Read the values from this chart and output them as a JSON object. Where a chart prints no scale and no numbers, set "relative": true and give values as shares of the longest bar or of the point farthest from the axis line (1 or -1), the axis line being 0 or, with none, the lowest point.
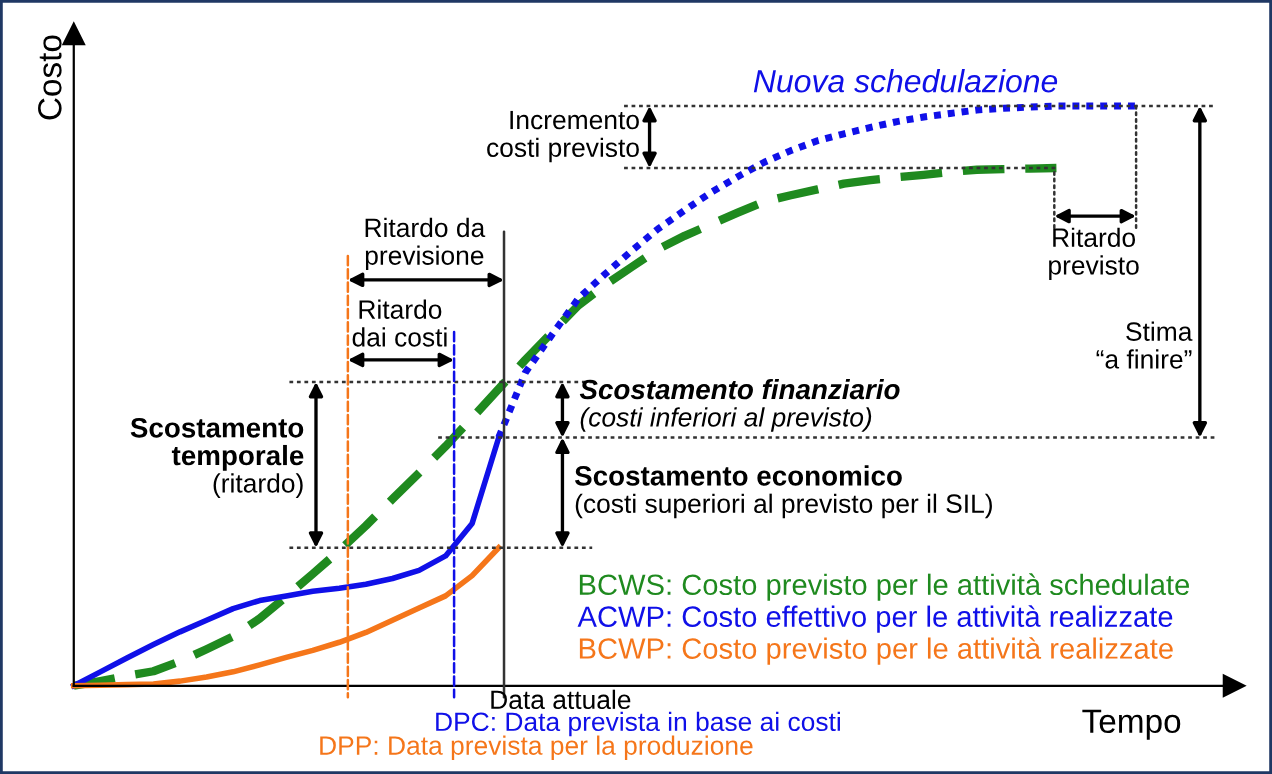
{
  "chart_data": {
    "type": "line",
    "relative": true,
    "xlabel": "Tempo",
    "ylabel": "Costo",
    "legend": "bottom right",
    "marker": "none",
    "categories": [
      null,
      null,
      null,
      null,
      null,
      null,
      null,
      null,
      null,
      null,
      null,
      null,
      null,
      null,
      null,
      null,
      null,
      null,
      null,
      null,
      null,
      null,
      null,
      null,
      null,
      null,
      null,
      null,
      null,
      null,
      null,
      null,
      null,
      null,
      null,
      null,
      null,
      null,
      null,
      null,
      null
    ],
    "series": [
      {
        "name": "BCWS: Costo previsto per le attività schedulate",
        "color": "#1f8a1f",
        "line_style": "dashed",
        "values": [
          0,
          0.008,
          0.017,
          0.025,
          0.042,
          0.063,
          0.085,
          0.116,
          0.154,
          0.193,
          0.233,
          0.276,
          0.322,
          0.367,
          0.413,
          0.462,
          0.512,
          0.562,
          0.609,
          0.656,
          0.691,
          0.722,
          0.753,
          0.776,
          0.796,
          0.816,
          0.835,
          0.846,
          0.856,
          0.866,
          0.872,
          0.877,
          0.881,
          0.886,
          0.89,
          0.891,
          0.892,
          0.893,
          null,
          null,
          null
        ]
      },
      {
        "name": "ACWP: Costo effettivo per le attività realizzate",
        "color": "#1010e8",
        "line_style": "solid",
        "values": [
          0,
          0.024,
          0.048,
          0.071,
          0.093,
          0.113,
          0.133,
          0.147,
          0.155,
          0.163,
          0.168,
          0.175,
          0.185,
          0.199,
          0.224,
          0.28,
          0.428,
          null,
          null,
          null,
          null,
          null,
          null,
          null,
          null,
          null,
          null,
          null,
          null,
          null,
          null,
          null,
          null,
          null,
          null,
          null,
          null,
          null,
          null,
          null,
          null
        ]
      },
      {
        "color": "#1010e8",
        "line_style": "dotted",
        "values": [
          null,
          null,
          null,
          null,
          null,
          null,
          null,
          null,
          null,
          null,
          null,
          null,
          null,
          null,
          null,
          null,
          0.428,
          0.54,
          0.605,
          0.668,
          0.71,
          0.75,
          0.788,
          0.82,
          0.851,
          0.878,
          0.903,
          0.923,
          0.94,
          0.952,
          0.963,
          0.973,
          0.981,
          0.987,
          0.993,
          0.996,
          0.998,
          1.0,
          1.0,
          1.0,
          1.0
        ]
      },
      {
        "name": "BCWP: Costo previsto per le attività realizzate",
        "color": "#f5761a",
        "line_style": "solid",
        "values": [
          0,
          0.001,
          0.002,
          0.003,
          0.008,
          0.015,
          0.024,
          0.036,
          0.049,
          0.061,
          0.075,
          0.092,
          0.113,
          0.134,
          0.155,
          0.19,
          0.238,
          null,
          null,
          null,
          null,
          null,
          null,
          null,
          null,
          null,
          null,
          null,
          null,
          null,
          null,
          null,
          null,
          null,
          null,
          null,
          null,
          null,
          null,
          null,
          null
        ]
      }
    ],
    "ref_lines": [
      {
        "axis": "y",
        "value": 1.0,
        "color": "#333333",
        "line_style": "dotted"
      },
      {
        "axis": "y",
        "value": 0.893,
        "color": "#333333",
        "line_style": "dotted"
      },
      {
        "axis": "y",
        "value": 0.524,
        "color": "#333333",
        "line_style": "dotted"
      },
      {
        "axis": "y",
        "value": 0.428,
        "color": "#333333",
        "line_style": "dotted"
      },
      {
        "axis": "y",
        "value": 0.238,
        "color": "#333333",
        "line_style": "dotted"
      }
    ],
    "annotations": [
      "Incremento\ncosti previsto",
      "Ritardo\nprevisto",
      "Stima\n“a finire”",
      "Ritardo da\nprevisione",
      "Ritardo\ndai costi",
      "Scostamento\ntemporale\n(ritardo)",
      "Scostamento finanziario\n(costi inferiori al previsto)",
      "Scostamento economico\n(costi superiori al previsto per il SIL)",
      "Nuova schedulazione",
      "Data attuale",
      "DPC: Data prevista in base ai costi",
      "DPP: Data prevista per la produzione"
    ]
  }
}
